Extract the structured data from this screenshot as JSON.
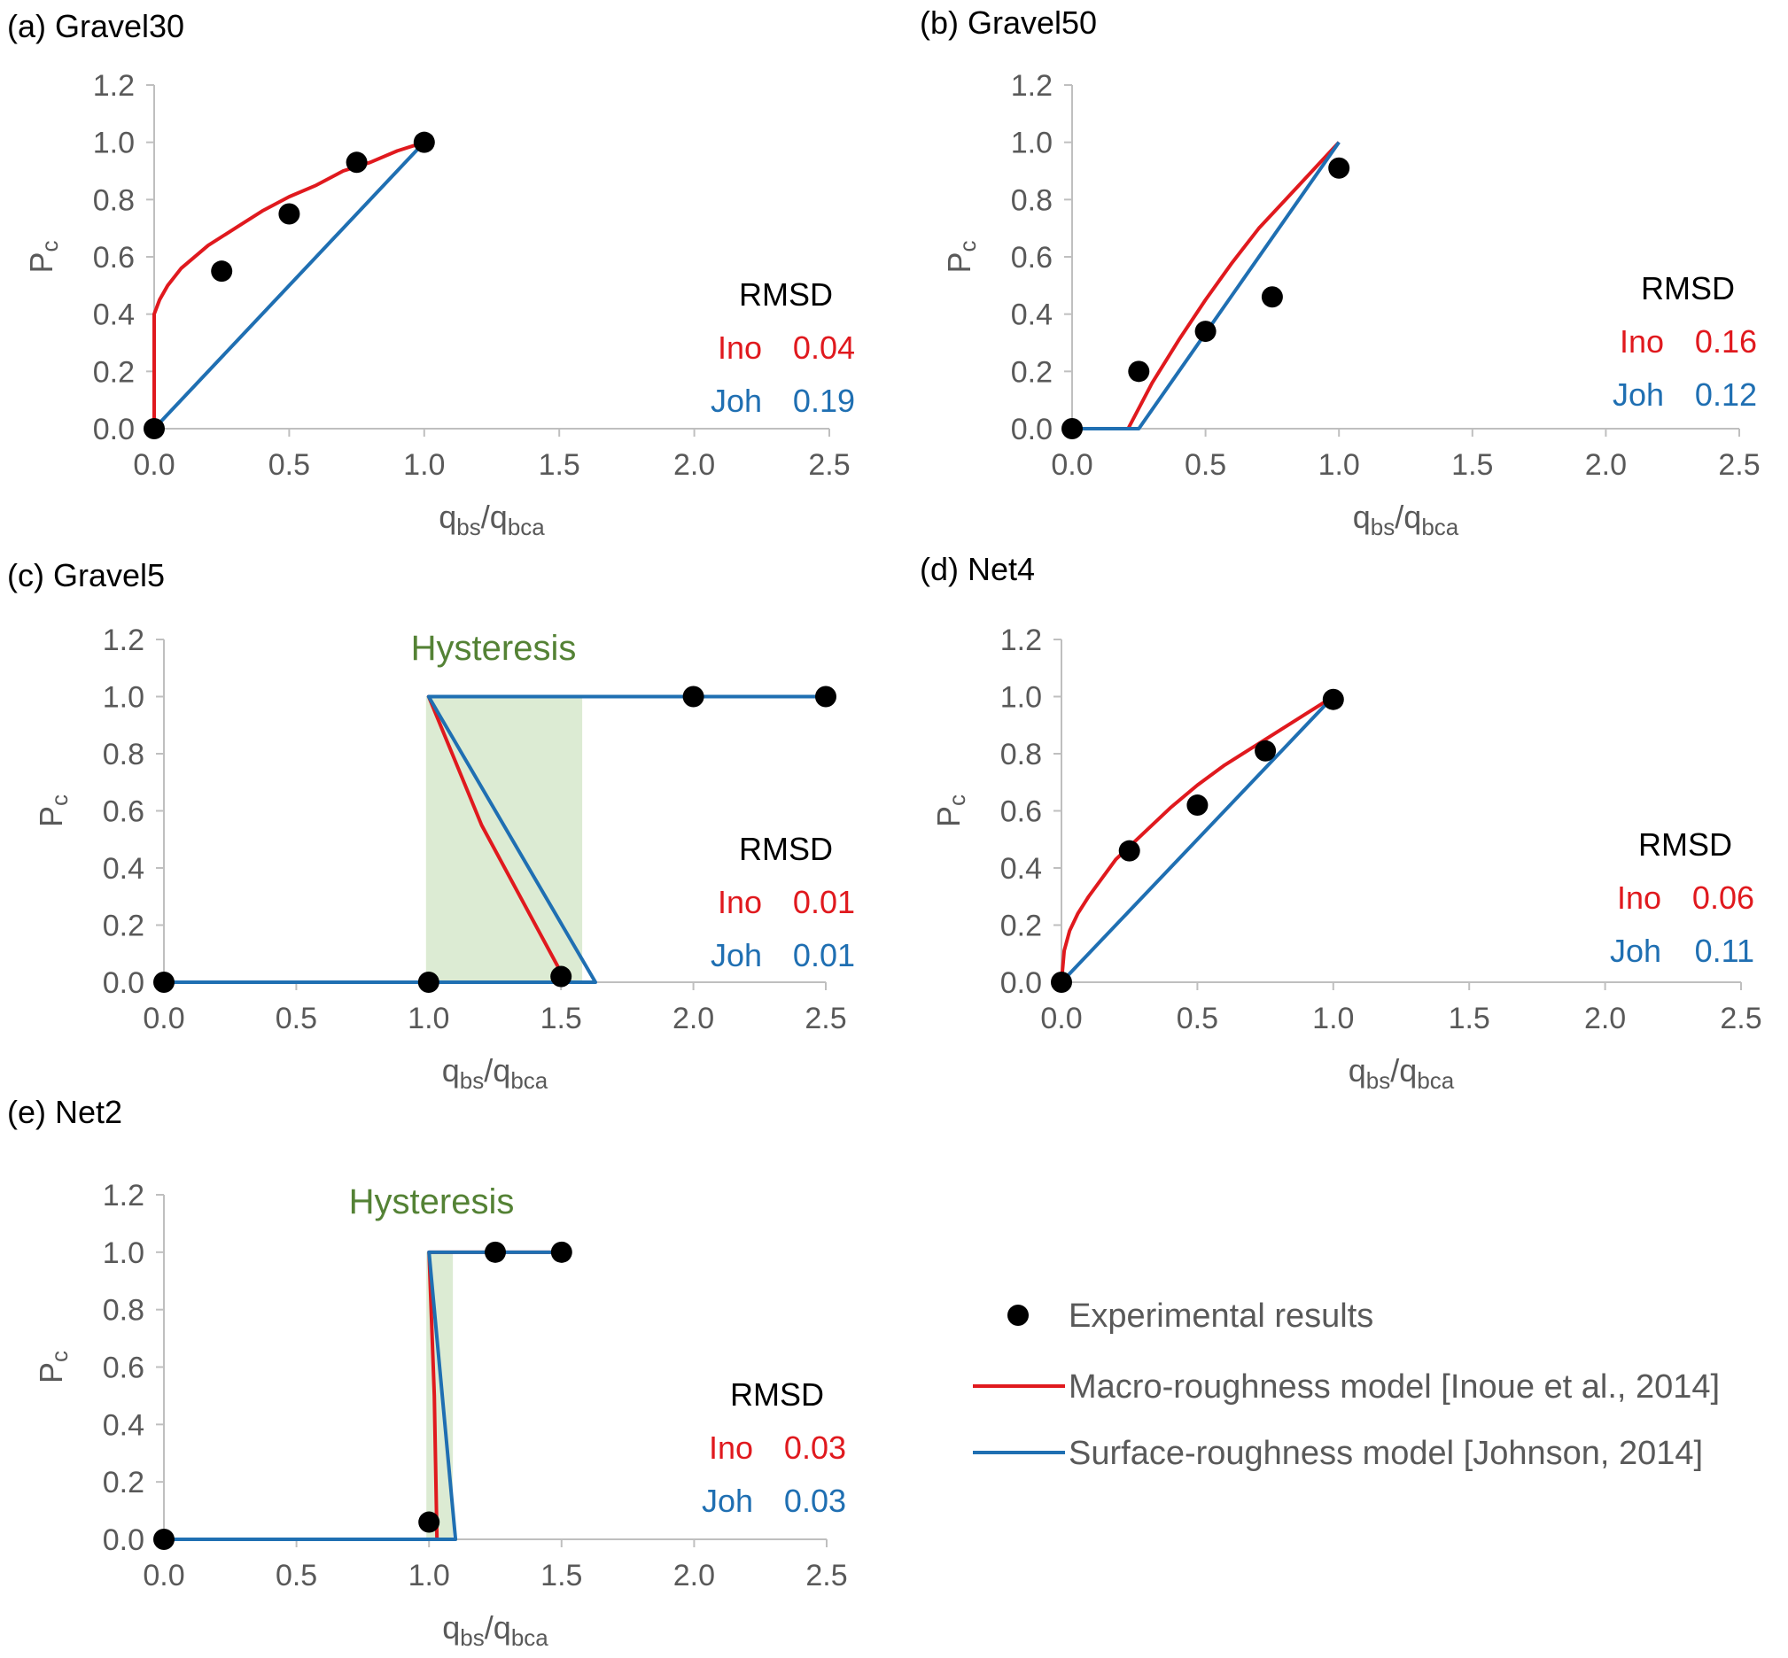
{
  "colors": {
    "ino": "#e0191e",
    "joh": "#1f6fb2",
    "points": "#000000",
    "hysteresis_fill": "#dcebd3",
    "hysteresis_text": "#548235",
    "axis": "#bfbfbf"
  },
  "axis_text": {
    "x_main_1": "q",
    "x_sub_1": "bs",
    "x_slash": "/",
    "x_main_2": "q",
    "x_sub_2": "bca",
    "y_main": "P",
    "y_sub": "c"
  },
  "legend": {
    "points": "Experimental results",
    "ino": "Macro-roughness model [Inoue et al., 2014]",
    "joh": "Surface-roughness model [Johnson, 2014]"
  },
  "chart_data": [
    {
      "type": "line",
      "title": "(a) Gravel30",
      "xlabel": "qbs/qbca",
      "ylabel": "Pc",
      "xlim": [
        0,
        2.5
      ],
      "ylim": [
        0,
        1.2
      ],
      "xticks": [
        "0.0",
        "0.5",
        "1.0",
        "1.5",
        "2.0",
        "2.5"
      ],
      "yticks": [
        "0.0",
        "0.2",
        "0.4",
        "0.6",
        "0.8",
        "1.0",
        "1.2"
      ],
      "rmsd": {
        "label": "RMSD",
        "ino_label": "Ino",
        "ino": "0.04",
        "joh_label": "Joh",
        "joh": "0.19"
      },
      "points": [
        [
          0,
          0
        ],
        [
          0.25,
          0.55
        ],
        [
          0.5,
          0.75
        ],
        [
          0.75,
          0.93
        ],
        [
          1.0,
          1.0
        ]
      ],
      "series": [
        {
          "key": "ino",
          "x": [
            0,
            0,
            0.02,
            0.05,
            0.1,
            0.2,
            0.3,
            0.4,
            0.5,
            0.6,
            0.7,
            0.8,
            0.9,
            1.0
          ],
          "y": [
            0,
            0.4,
            0.45,
            0.5,
            0.56,
            0.64,
            0.7,
            0.76,
            0.81,
            0.85,
            0.9,
            0.93,
            0.97,
            1.0
          ]
        },
        {
          "key": "joh",
          "x": [
            0,
            1.0
          ],
          "y": [
            0,
            1.0
          ]
        }
      ]
    },
    {
      "type": "line",
      "title": "(b) Gravel50",
      "xlabel": "qbs/qbca",
      "ylabel": "Pc",
      "xlim": [
        0,
        2.5
      ],
      "ylim": [
        0,
        1.2
      ],
      "xticks": [
        "0.0",
        "0.5",
        "1.0",
        "1.5",
        "2.0",
        "2.5"
      ],
      "yticks": [
        "0.0",
        "0.2",
        "0.4",
        "0.6",
        "0.8",
        "1.0",
        "1.2"
      ],
      "rmsd": {
        "label": "RMSD",
        "ino_label": "Ino",
        "ino": "0.16",
        "joh_label": "Joh",
        "joh": "0.12"
      },
      "points": [
        [
          0,
          0
        ],
        [
          0.25,
          0.2
        ],
        [
          0.5,
          0.34
        ],
        [
          0.75,
          0.46
        ],
        [
          1.0,
          0.91
        ]
      ],
      "series": [
        {
          "key": "ino",
          "x": [
            0,
            0.21,
            0.3,
            0.4,
            0.5,
            0.6,
            0.7,
            0.8,
            0.9,
            1.0
          ],
          "y": [
            0,
            0,
            0.16,
            0.31,
            0.45,
            0.58,
            0.7,
            0.8,
            0.9,
            1.0
          ]
        },
        {
          "key": "joh",
          "x": [
            0,
            0.25,
            1.0
          ],
          "y": [
            0,
            0,
            1.0
          ]
        }
      ]
    },
    {
      "type": "line",
      "title": "(c) Gravel5",
      "xlabel": "qbs/qbca",
      "ylabel": "Pc",
      "xlim": [
        0,
        2.5
      ],
      "ylim": [
        0,
        1.2
      ],
      "xticks": [
        "0.0",
        "0.5",
        "1.0",
        "1.5",
        "2.0",
        "2.5"
      ],
      "yticks": [
        "0.0",
        "0.2",
        "0.4",
        "0.6",
        "0.8",
        "1.0",
        "1.2"
      ],
      "annotation": "Hysteresis",
      "hysteresis": [
        0.99,
        1.58
      ],
      "rmsd": {
        "label": "RMSD",
        "ino_label": "Ino",
        "ino": "0.01",
        "joh_label": "Joh",
        "joh": "0.01"
      },
      "points": [
        [
          0,
          0
        ],
        [
          1.0,
          0
        ],
        [
          1.5,
          0.02
        ],
        [
          2.0,
          1.0
        ],
        [
          2.5,
          1.0
        ]
      ],
      "series": [
        {
          "key": "ino",
          "x": [
            0,
            1.52,
            1.2,
            1.0,
            2.5
          ],
          "y": [
            0,
            0,
            0.55,
            1.0,
            1.0
          ]
        },
        {
          "key": "joh",
          "x": [
            0,
            1.63,
            1.0,
            2.5
          ],
          "y": [
            0,
            0,
            1.0,
            1.0
          ]
        }
      ]
    },
    {
      "type": "line",
      "title": "(d) Net4",
      "xlabel": "qbs/qbca",
      "ylabel": "Pc",
      "xlim": [
        0,
        2.5
      ],
      "ylim": [
        0,
        1.2
      ],
      "xticks": [
        "0.0",
        "0.5",
        "1.0",
        "1.5",
        "2.0",
        "2.5"
      ],
      "yticks": [
        "0.0",
        "0.2",
        "0.4",
        "0.6",
        "0.8",
        "1.0",
        "1.2"
      ],
      "rmsd": {
        "label": "RMSD",
        "ino_label": "Ino",
        "ino": "0.06",
        "joh_label": "Joh",
        "joh": "0.11"
      },
      "points": [
        [
          0,
          0
        ],
        [
          0.25,
          0.46
        ],
        [
          0.5,
          0.62
        ],
        [
          0.75,
          0.81
        ],
        [
          1.0,
          0.99
        ]
      ],
      "series": [
        {
          "key": "ino",
          "x": [
            0,
            0.01,
            0.03,
            0.06,
            0.1,
            0.2,
            0.3,
            0.4,
            0.5,
            0.6,
            0.7,
            0.8,
            0.9,
            1.0
          ],
          "y": [
            0,
            0.11,
            0.18,
            0.24,
            0.3,
            0.43,
            0.52,
            0.61,
            0.69,
            0.76,
            0.82,
            0.88,
            0.94,
            1.0
          ]
        },
        {
          "key": "joh",
          "x": [
            0,
            1.0
          ],
          "y": [
            0,
            1.0
          ]
        }
      ]
    },
    {
      "type": "line",
      "title": "(e) Net2",
      "xlabel": "qbs/qbca",
      "ylabel": "Pc",
      "xlim": [
        0,
        2.5
      ],
      "ylim": [
        0,
        1.2
      ],
      "xticks": [
        "0.0",
        "0.5",
        "1.0",
        "1.5",
        "2.0",
        "2.5"
      ],
      "yticks": [
        "0.0",
        "0.2",
        "0.4",
        "0.6",
        "0.8",
        "1.0",
        "1.2"
      ],
      "annotation": "Hysteresis",
      "hysteresis": [
        0.99,
        1.09
      ],
      "rmsd": {
        "label": "RMSD",
        "ino_label": "Ino",
        "ino": "0.03",
        "joh_label": "Joh",
        "joh": "0.03"
      },
      "points": [
        [
          0,
          0
        ],
        [
          1.0,
          0.06
        ],
        [
          1.25,
          1.0
        ],
        [
          1.5,
          1.0
        ]
      ],
      "series": [
        {
          "key": "ino",
          "x": [
            0,
            1.03,
            1.02,
            1.0,
            1.5
          ],
          "y": [
            0,
            0,
            0.5,
            1.0,
            1.0
          ]
        },
        {
          "key": "joh",
          "x": [
            0,
            1.1,
            1.0,
            1.5
          ],
          "y": [
            0,
            0,
            1.0,
            1.0
          ]
        }
      ]
    }
  ]
}
